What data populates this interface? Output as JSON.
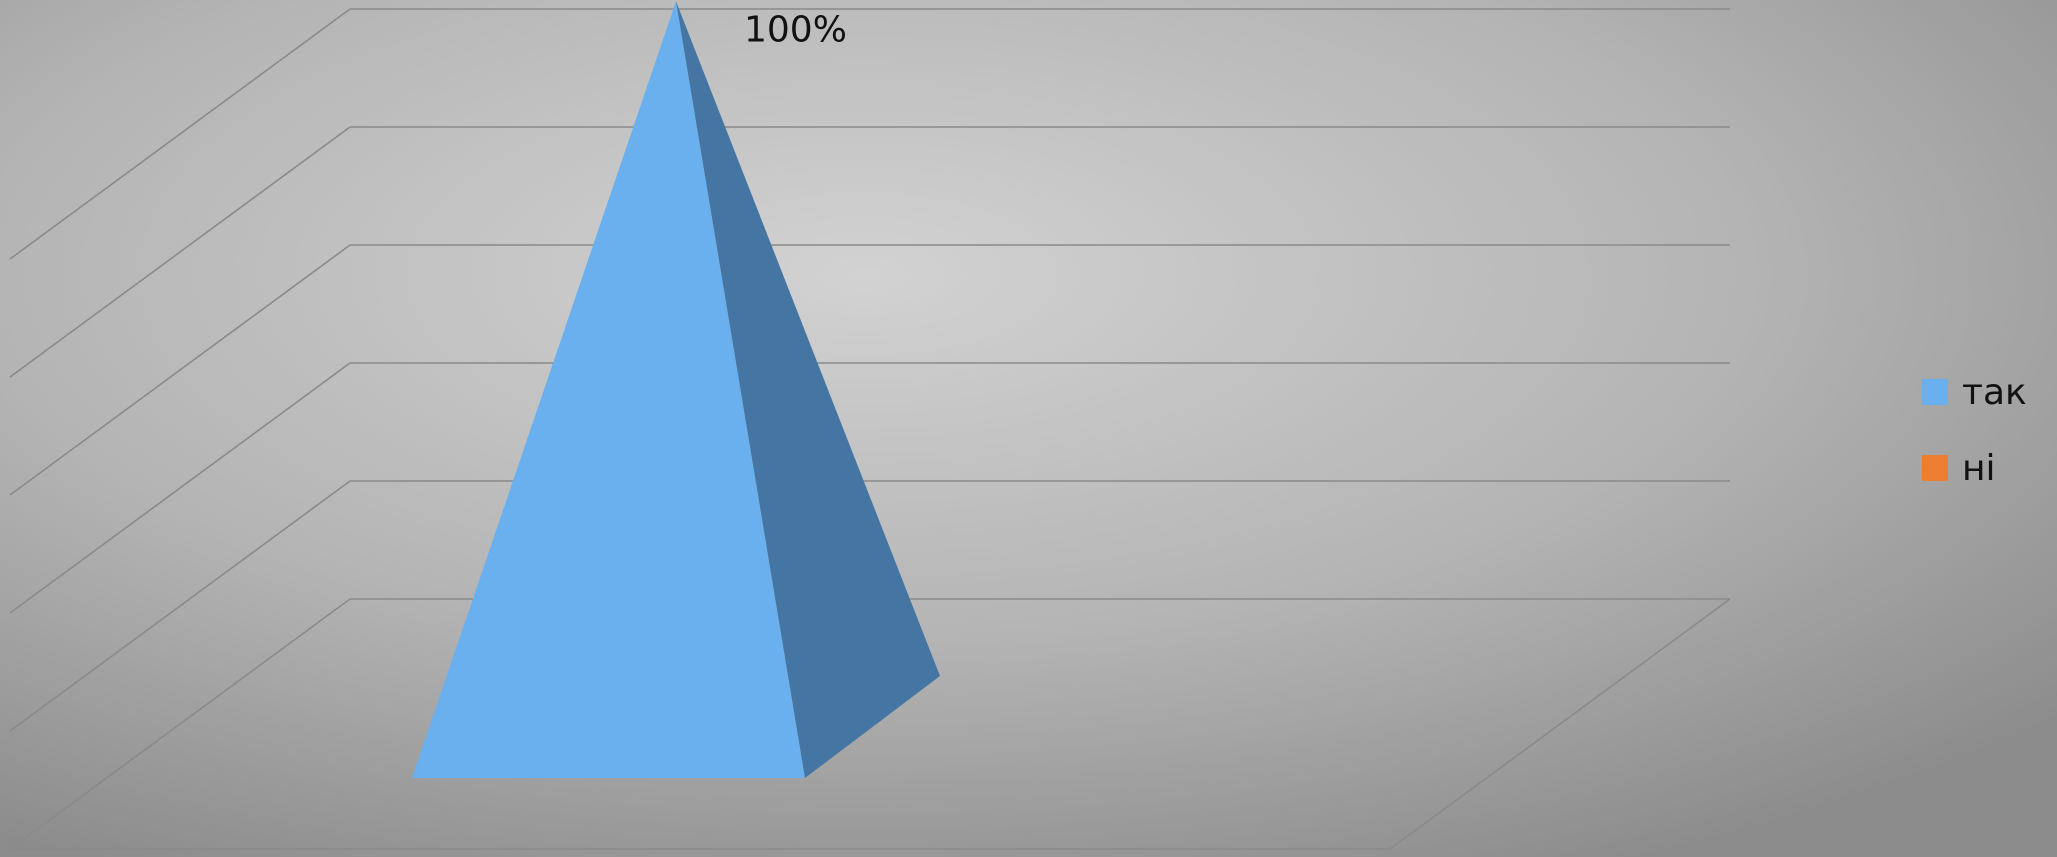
{
  "chart_data": {
    "type": "bar",
    "style": "3d-pyramid",
    "categories": [
      ""
    ],
    "series": [
      {
        "name": "так",
        "values": [
          1.0
        ],
        "color": "#6ab0ee"
      },
      {
        "name": "ні",
        "values": [
          0
        ],
        "color": "#ed7d31"
      }
    ],
    "data_labels": [
      "100%"
    ],
    "ylim": [
      0,
      1.2
    ],
    "gridline_count": 6,
    "grid": true,
    "legend": "right"
  }
}
